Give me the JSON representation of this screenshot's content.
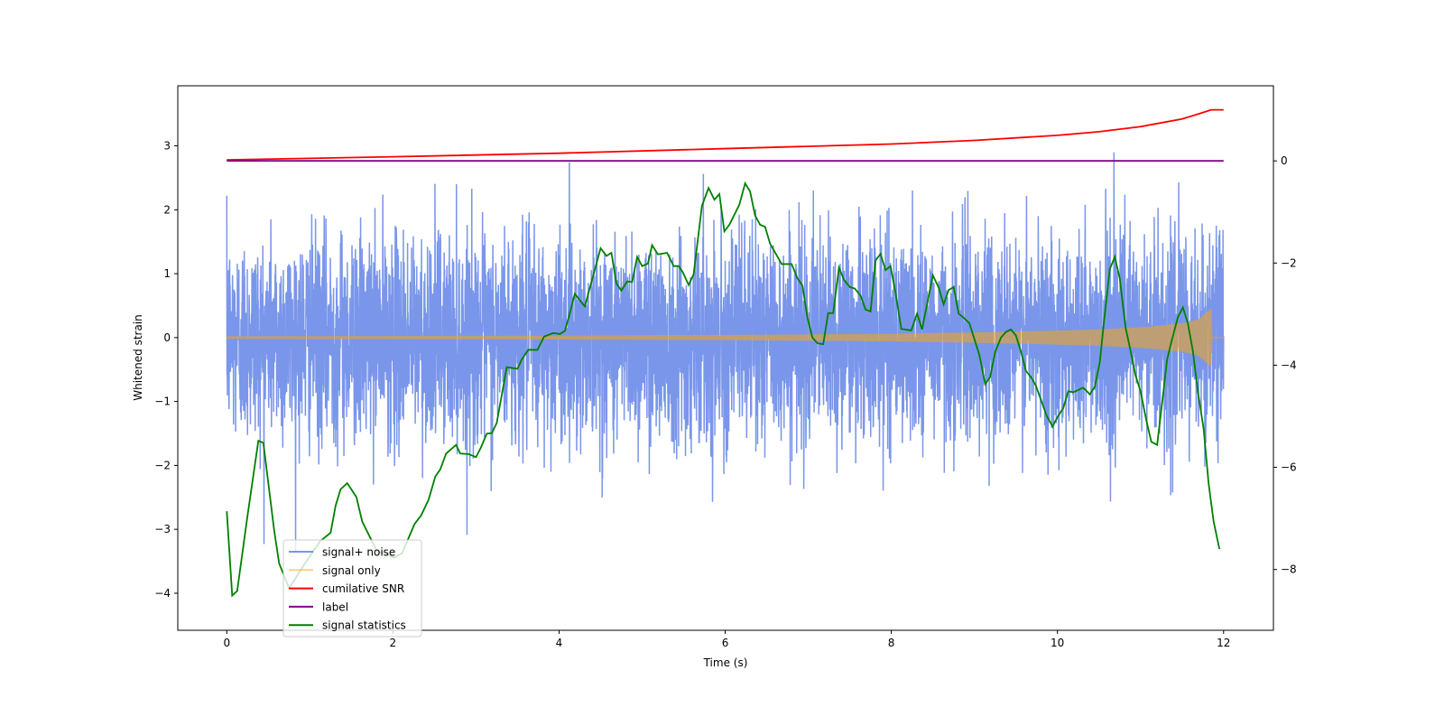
{
  "chart_data": {
    "type": "line",
    "title": "",
    "xlabel": "Time (s)",
    "ylabel": "Whitened strain",
    "ylabel_right": "",
    "xlim": [
      -0.59,
      12.6
    ],
    "ylim": [
      -4.58,
      3.94
    ],
    "ylim_right": [
      -9.19,
      1.47
    ],
    "xticks": [
      0,
      2,
      4,
      6,
      8,
      10,
      12
    ],
    "yticks": [
      3,
      2,
      1,
      0,
      -1,
      -2,
      -3,
      -4
    ],
    "yticks_right": [
      0,
      -2,
      -4,
      -6,
      -8
    ],
    "grid": false,
    "legend_placement": "lower-left",
    "colors": {
      "signal_noise": "#4169e1",
      "signal_only": "#ffa500",
      "snr": "#ff0000",
      "label": "#800080",
      "stats": "#008000"
    },
    "series": [
      {
        "name": "signal+ noise",
        "axis": "left",
        "description_params": {
          "t_start": 0,
          "t_end": 12,
          "std": 0.8,
          "min": -4.2,
          "max": 3.6
        }
      },
      {
        "name": "signal only",
        "axis": "left",
        "envelope": [
          [
            0,
            0.02
          ],
          [
            4,
            0.03
          ],
          [
            6,
            0.04
          ],
          [
            8,
            0.06
          ],
          [
            9,
            0.08
          ],
          [
            10,
            0.11
          ],
          [
            10.5,
            0.13
          ],
          [
            11,
            0.16
          ],
          [
            11.5,
            0.22
          ],
          [
            11.7,
            0.28
          ],
          [
            11.85,
            0.45
          ],
          [
            11.86,
            0
          ],
          [
            12,
            0
          ]
        ]
      },
      {
        "name": "cumilative SNR",
        "axis": "right",
        "points": [
          [
            0,
            0.02
          ],
          [
            2,
            0.08
          ],
          [
            4,
            0.15
          ],
          [
            6,
            0.24
          ],
          [
            8,
            0.33
          ],
          [
            9,
            0.4
          ],
          [
            10,
            0.5
          ],
          [
            10.5,
            0.57
          ],
          [
            11,
            0.67
          ],
          [
            11.5,
            0.82
          ],
          [
            11.7,
            0.92
          ],
          [
            11.85,
            1.0
          ],
          [
            12,
            1.0
          ]
        ]
      },
      {
        "name": "label",
        "axis": "right",
        "points": [
          [
            0,
            0
          ],
          [
            12,
            0
          ]
        ]
      },
      {
        "name": "signal statistics",
        "axis": "right",
        "points": [
          [
            0,
            -6.86
          ],
          [
            0.065,
            -8.51
          ],
          [
            0.125,
            -8.42
          ],
          [
            0.25,
            -6.94
          ],
          [
            0.38,
            -5.48
          ],
          [
            0.44,
            -5.52
          ],
          [
            0.57,
            -7.23
          ],
          [
            0.63,
            -7.88
          ],
          [
            0.75,
            -8.37
          ],
          [
            0.93,
            -7.91
          ],
          [
            1.12,
            -7.45
          ],
          [
            1.25,
            -7.28
          ],
          [
            1.31,
            -6.75
          ],
          [
            1.37,
            -6.43
          ],
          [
            1.45,
            -6.31
          ],
          [
            1.56,
            -6.58
          ],
          [
            1.63,
            -7.06
          ],
          [
            1.81,
            -7.65
          ],
          [
            1.9,
            -7.68
          ],
          [
            2.01,
            -7.77
          ],
          [
            2.11,
            -7.68
          ],
          [
            2.26,
            -7.11
          ],
          [
            2.34,
            -6.94
          ],
          [
            2.43,
            -6.63
          ],
          [
            2.51,
            -6.18
          ],
          [
            2.57,
            -6.04
          ],
          [
            2.64,
            -5.73
          ],
          [
            2.76,
            -5.56
          ],
          [
            2.81,
            -5.73
          ],
          [
            2.91,
            -5.74
          ],
          [
            3.0,
            -5.8
          ],
          [
            3.06,
            -5.61
          ],
          [
            3.13,
            -5.34
          ],
          [
            3.19,
            -5.33
          ],
          [
            3.25,
            -5.13
          ],
          [
            3.37,
            -4.04
          ],
          [
            3.5,
            -4.07
          ],
          [
            3.55,
            -3.89
          ],
          [
            3.63,
            -3.7
          ],
          [
            3.74,
            -3.7
          ],
          [
            3.82,
            -3.44
          ],
          [
            3.93,
            -3.37
          ],
          [
            4.01,
            -3.39
          ],
          [
            4.07,
            -3.33
          ],
          [
            4.12,
            -3.04
          ],
          [
            4.19,
            -2.6
          ],
          [
            4.26,
            -2.75
          ],
          [
            4.31,
            -2.85
          ],
          [
            4.5,
            -1.71
          ],
          [
            4.57,
            -1.86
          ],
          [
            4.63,
            -1.8
          ],
          [
            4.69,
            -2.4
          ],
          [
            4.75,
            -2.54
          ],
          [
            4.82,
            -2.36
          ],
          [
            4.88,
            -2.37
          ],
          [
            4.94,
            -1.88
          ],
          [
            5.0,
            -2.06
          ],
          [
            5.07,
            -2.01
          ],
          [
            5.12,
            -1.65
          ],
          [
            5.19,
            -1.83
          ],
          [
            5.3,
            -1.8
          ],
          [
            5.38,
            -2.06
          ],
          [
            5.44,
            -2.06
          ],
          [
            5.49,
            -2.18
          ],
          [
            5.56,
            -2.43
          ],
          [
            5.62,
            -2.22
          ],
          [
            5.72,
            -0.88
          ],
          [
            5.8,
            -0.53
          ],
          [
            5.87,
            -0.76
          ],
          [
            5.93,
            -0.65
          ],
          [
            5.99,
            -1.38
          ],
          [
            6.05,
            -1.25
          ],
          [
            6.17,
            -0.86
          ],
          [
            6.24,
            -0.44
          ],
          [
            6.3,
            -0.6
          ],
          [
            6.36,
            -1.07
          ],
          [
            6.42,
            -1.25
          ],
          [
            6.48,
            -1.29
          ],
          [
            6.54,
            -1.62
          ],
          [
            6.68,
            -2.02
          ],
          [
            6.8,
            -2.02
          ],
          [
            6.87,
            -2.3
          ],
          [
            6.93,
            -2.44
          ],
          [
            6.99,
            -3.07
          ],
          [
            7.05,
            -3.46
          ],
          [
            7.11,
            -3.57
          ],
          [
            7.18,
            -3.59
          ],
          [
            7.24,
            -2.98
          ],
          [
            7.3,
            -2.98
          ],
          [
            7.37,
            -2.09
          ],
          [
            7.43,
            -2.33
          ],
          [
            7.5,
            -2.47
          ],
          [
            7.56,
            -2.5
          ],
          [
            7.63,
            -2.64
          ],
          [
            7.69,
            -2.91
          ],
          [
            7.75,
            -2.95
          ],
          [
            7.81,
            -1.95
          ],
          [
            7.87,
            -1.82
          ],
          [
            7.93,
            -2.14
          ],
          [
            7.99,
            -2.06
          ],
          [
            8.05,
            -2.58
          ],
          [
            8.12,
            -3.29
          ],
          [
            8.24,
            -3.32
          ],
          [
            8.31,
            -2.99
          ],
          [
            8.37,
            -3.3
          ],
          [
            8.5,
            -2.24
          ],
          [
            8.57,
            -2.48
          ],
          [
            8.63,
            -2.81
          ],
          [
            8.69,
            -2.53
          ],
          [
            8.75,
            -2.47
          ],
          [
            8.81,
            -2.99
          ],
          [
            8.87,
            -3.07
          ],
          [
            8.94,
            -3.18
          ],
          [
            9.06,
            -3.8
          ],
          [
            9.13,
            -4.37
          ],
          [
            9.19,
            -4.23
          ],
          [
            9.25,
            -3.74
          ],
          [
            9.32,
            -3.46
          ],
          [
            9.38,
            -3.35
          ],
          [
            9.44,
            -3.3
          ],
          [
            9.5,
            -3.42
          ],
          [
            9.56,
            -3.73
          ],
          [
            9.62,
            -4.11
          ],
          [
            9.68,
            -4.23
          ],
          [
            9.74,
            -4.4
          ],
          [
            9.87,
            -4.99
          ],
          [
            9.94,
            -5.2
          ],
          [
            10.01,
            -4.99
          ],
          [
            10.07,
            -4.84
          ],
          [
            10.13,
            -4.51
          ],
          [
            10.19,
            -4.53
          ],
          [
            10.31,
            -4.44
          ],
          [
            10.39,
            -4.57
          ],
          [
            10.45,
            -4.42
          ],
          [
            10.51,
            -3.94
          ],
          [
            10.56,
            -3.15
          ],
          [
            10.63,
            -2.12
          ],
          [
            10.69,
            -1.88
          ],
          [
            10.75,
            -2.3
          ],
          [
            10.82,
            -3.26
          ],
          [
            10.88,
            -3.72
          ],
          [
            10.94,
            -4.2
          ],
          [
            11.0,
            -4.51
          ],
          [
            11.07,
            -5.08
          ],
          [
            11.13,
            -5.5
          ],
          [
            11.2,
            -5.56
          ],
          [
            11.26,
            -4.74
          ],
          [
            11.32,
            -3.89
          ],
          [
            11.38,
            -3.49
          ],
          [
            11.45,
            -3.06
          ],
          [
            11.51,
            -2.87
          ],
          [
            11.57,
            -3.18
          ],
          [
            11.63,
            -3.72
          ],
          [
            11.69,
            -4.51
          ],
          [
            11.76,
            -5.25
          ],
          [
            11.82,
            -6.32
          ],
          [
            11.88,
            -7.06
          ],
          [
            11.95,
            -7.6
          ]
        ]
      }
    ]
  }
}
